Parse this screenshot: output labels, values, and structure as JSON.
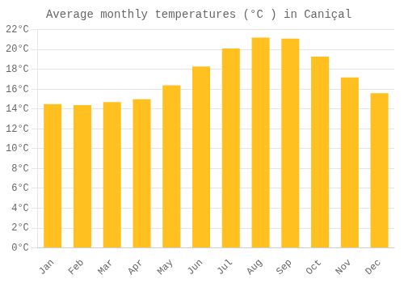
{
  "chart_data": {
    "type": "bar",
    "title": "Average monthly temperatures (°C ) in Caniçal",
    "categories": [
      "Jan",
      "Feb",
      "Mar",
      "Apr",
      "May",
      "Jun",
      "Jul",
      "Aug",
      "Sep",
      "Oct",
      "Nov",
      "Dec"
    ],
    "values": [
      14.5,
      14.4,
      14.7,
      15.0,
      16.4,
      18.3,
      20.1,
      21.2,
      21.1,
      19.3,
      17.2,
      15.6
    ],
    "color": "#FFC020",
    "ylim": [
      0,
      22
    ],
    "yticks": [
      {
        "value": 0,
        "label": "0°C"
      },
      {
        "value": 2,
        "label": "2°C"
      },
      {
        "value": 4,
        "label": "4°C"
      },
      {
        "value": 6,
        "label": "6°C"
      },
      {
        "value": 8,
        "label": "8°C"
      },
      {
        "value": 10,
        "label": "10°C"
      },
      {
        "value": 12,
        "label": "12°C"
      },
      {
        "value": 14,
        "label": "14°C"
      },
      {
        "value": 16,
        "label": "16°C"
      },
      {
        "value": 18,
        "label": "18°C"
      },
      {
        "value": 20,
        "label": "20°C"
      },
      {
        "value": 22,
        "label": "22°C"
      }
    ],
    "grid": true
  }
}
